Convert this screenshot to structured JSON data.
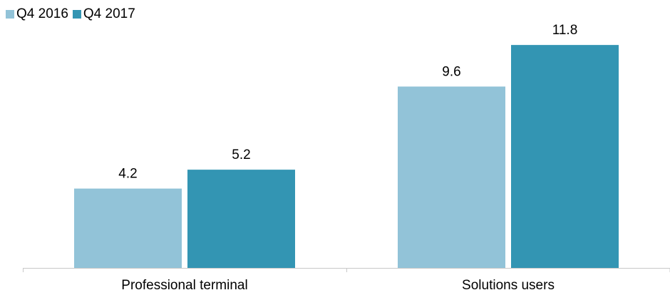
{
  "chart_data": {
    "type": "bar",
    "categories": [
      "Professional terminal",
      "Solutions users"
    ],
    "series": [
      {
        "name": "Q4 2016",
        "values": [
          4.2,
          9.6
        ],
        "color": "#92c3d8"
      },
      {
        "name": "Q4 2017",
        "values": [
          5.2,
          11.8
        ],
        "color": "#3395b3"
      }
    ],
    "title": "",
    "xlabel": "",
    "ylabel": "",
    "ylim": [
      0,
      13.2
    ],
    "legend_position": "top-left",
    "grid": false,
    "data_labels": true,
    "colors": {
      "axis": "#c8c8c8",
      "text": "#000000"
    }
  }
}
